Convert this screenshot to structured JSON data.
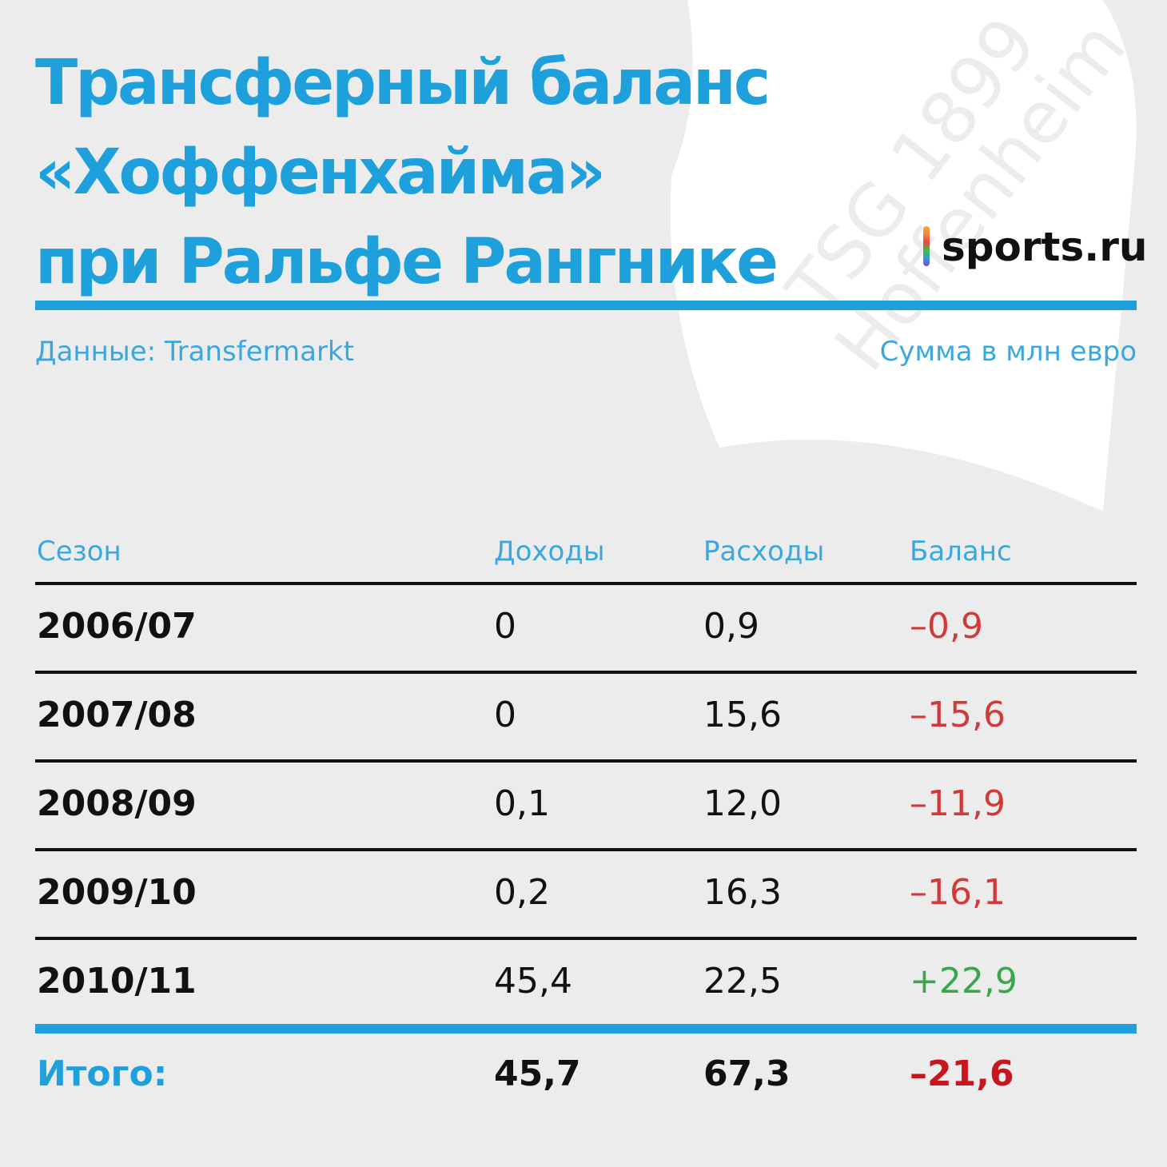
{
  "header": {
    "title_lines": [
      "Трансферный баланс",
      "«Хоффенхайма»",
      "при Ральфе Рангнике"
    ],
    "logo": "sports.ru",
    "watermark_lines": [
      "TSG 1899",
      "Hoffenheim"
    ],
    "source": "Данные: Transfermarkt",
    "units": "Сумма в млн евро"
  },
  "table": {
    "columns": [
      "Сезон",
      "Доходы",
      "Расходы",
      "Баланс"
    ],
    "rows": [
      [
        "2006/07",
        "0",
        "0,9",
        "–0,9"
      ],
      [
        "2007/08",
        "0",
        "15,6",
        "–15,6"
      ],
      [
        "2008/09",
        "0,1",
        "12,0",
        "–11,9"
      ],
      [
        "2009/10",
        "0,2",
        "16,3",
        "–16,1"
      ],
      [
        "2010/11",
        "45,4",
        "22,5",
        "+22,9"
      ]
    ],
    "total": [
      "Итого:",
      "45,7",
      "67,3",
      "–21,6"
    ]
  }
}
